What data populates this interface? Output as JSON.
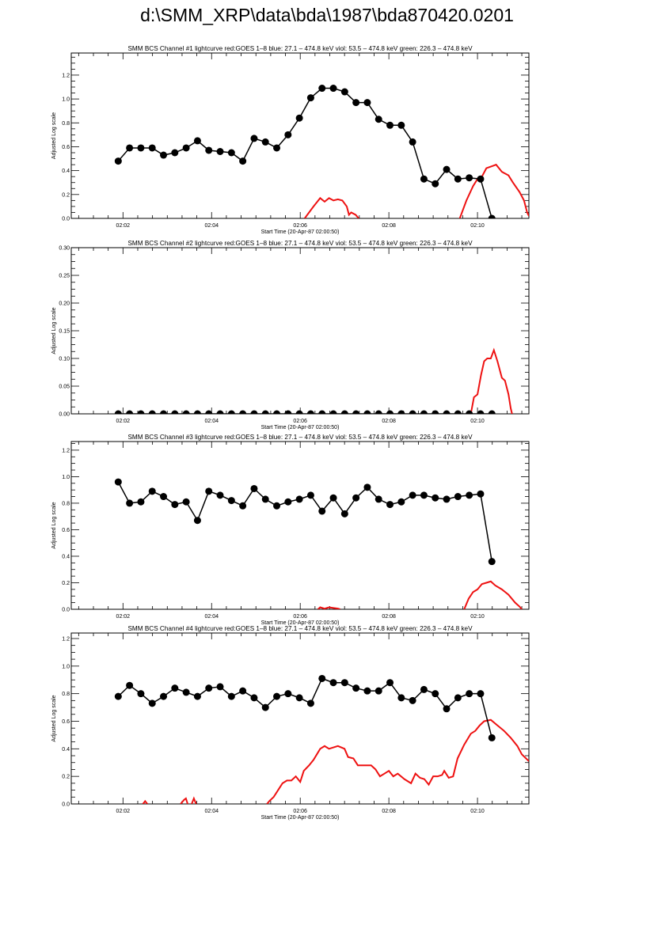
{
  "page_title": "d:\\SMM_XRP\\data\\bda\\1987\\bda870420.0201",
  "colors": {
    "black_series": "#000000",
    "red_series": "#ee1111"
  },
  "chart_data": [
    {
      "type": "line",
      "title": "SMM BCS Channel #1 lightcurve  red:GOES 1–8  blue: 27.1 – 474.8 keV  viol: 53.5 – 474.8 keV  green: 226.3 – 474.8 keV",
      "xlabel": "Start Time (20-Apr-87 02:00:50)",
      "ylabel": "Adjusted Log scale",
      "xlim_minutes_after_0200": [
        0.833,
        11.16
      ],
      "x_ticks": [
        "02:02",
        "02:04",
        "02:06",
        "02:08",
        "02:10"
      ],
      "ylim": [
        0,
        1.385
      ],
      "y_ticks": [
        "0.0",
        "0.2",
        "0.4",
        "0.6",
        "0.8",
        "1.0",
        "1.2"
      ],
      "black_x_start_minutes": 1.893,
      "black_x_step_minutes": 0.2555,
      "black_values": [
        0.48,
        0.59,
        0.59,
        0.59,
        0.53,
        0.55,
        0.59,
        0.65,
        0.57,
        0.56,
        0.55,
        0.48,
        0.67,
        0.64,
        0.59,
        0.7,
        0.84,
        1.01,
        1.09,
        1.09,
        1.06,
        0.97,
        0.97,
        0.83,
        0.78,
        0.78,
        0.64,
        0.33,
        0.29,
        0.41,
        0.33,
        0.34,
        0.33,
        0.0
      ],
      "red_segments": [
        [
          [
            6.1,
            0
          ],
          [
            6.3,
            0.1
          ],
          [
            6.45,
            0.17
          ],
          [
            6.55,
            0.14
          ],
          [
            6.65,
            0.17
          ],
          [
            6.75,
            0.15
          ],
          [
            6.85,
            0.16
          ],
          [
            6.95,
            0.15
          ],
          [
            7.05,
            0.1
          ],
          [
            7.1,
            0.03
          ],
          [
            7.15,
            0.05
          ],
          [
            7.25,
            0.03
          ],
          [
            7.32,
            0
          ]
        ],
        [
          [
            9.6,
            0
          ],
          [
            9.75,
            0.15
          ],
          [
            9.9,
            0.27
          ],
          [
            10.0,
            0.33
          ],
          [
            10.1,
            0.35
          ],
          [
            10.2,
            0.42
          ],
          [
            10.35,
            0.44
          ],
          [
            10.42,
            0.45
          ],
          [
            10.55,
            0.39
          ],
          [
            10.7,
            0.36
          ],
          [
            10.8,
            0.3
          ],
          [
            10.95,
            0.22
          ],
          [
            11.05,
            0.15
          ],
          [
            11.12,
            0.05
          ],
          [
            11.16,
            0.02
          ]
        ]
      ]
    },
    {
      "type": "line",
      "title": "SMM BCS Channel #2 lightcurve  red:GOES 1–8  blue: 27.1 – 474.8 keV  viol: 53.5 – 474.8 keV  green: 226.3 – 474.8 keV",
      "xlabel": "Start Time (20-Apr-87 02:00:50)",
      "ylabel": "Adjusted Log scale",
      "xlim_minutes_after_0200": [
        0.833,
        11.16
      ],
      "x_ticks": [
        "02:02",
        "02:04",
        "02:06",
        "02:08",
        "02:10"
      ],
      "ylim": [
        0,
        0.3
      ],
      "y_ticks": [
        "0.00",
        "0.05",
        "0.10",
        "0.15",
        "0.20",
        "0.25",
        "0.30"
      ],
      "black_x_start_minutes": 1.893,
      "black_x_step_minutes": 0.2555,
      "black_values": [
        0,
        0,
        0,
        0,
        0,
        0,
        0,
        0,
        0,
        0,
        0,
        0,
        0,
        0,
        0,
        0,
        0,
        0,
        0,
        0,
        0,
        0,
        0,
        0,
        0,
        0,
        0,
        0,
        0,
        0,
        0,
        0,
        0,
        0
      ],
      "red_segments": [
        [
          [
            9.85,
            0
          ],
          [
            9.92,
            0.03
          ],
          [
            10.0,
            0.035
          ],
          [
            10.08,
            0.07
          ],
          [
            10.15,
            0.095
          ],
          [
            10.22,
            0.1
          ],
          [
            10.3,
            0.1
          ],
          [
            10.37,
            0.115
          ],
          [
            10.45,
            0.095
          ],
          [
            10.55,
            0.065
          ],
          [
            10.62,
            0.06
          ],
          [
            10.7,
            0.035
          ],
          [
            10.75,
            0.01
          ],
          [
            10.78,
            0
          ]
        ]
      ]
    },
    {
      "type": "line",
      "title": "SMM BCS Channel #3 lightcurve  red:GOES 1–8  blue: 27.1 – 474.8 keV  viol: 53.5 – 474.8 keV  green: 226.3 – 474.8 keV",
      "xlabel": "Start Time (20-Apr-87 02:00:50)",
      "ylabel": "Adjusted Log scale",
      "xlim_minutes_after_0200": [
        0.833,
        11.16
      ],
      "x_ticks": [
        "02:02",
        "02:04",
        "02:06",
        "02:08",
        "02:10"
      ],
      "ylim": [
        0,
        1.265
      ],
      "y_ticks": [
        "0.0",
        "0.2",
        "0.4",
        "0.6",
        "0.8",
        "1.0",
        "1.2"
      ],
      "black_x_start_minutes": 1.893,
      "black_x_step_minutes": 0.2555,
      "black_values": [
        0.96,
        0.8,
        0.81,
        0.89,
        0.85,
        0.79,
        0.81,
        0.67,
        0.89,
        0.86,
        0.82,
        0.78,
        0.91,
        0.83,
        0.78,
        0.81,
        0.83,
        0.86,
        0.74,
        0.84,
        0.72,
        0.84,
        0.92,
        0.83,
        0.79,
        0.81,
        0.86,
        0.86,
        0.84,
        0.83,
        0.85,
        0.86,
        0.87,
        0.36
      ],
      "red_segments": [
        [
          [
            6.4,
            0
          ],
          [
            6.45,
            0.015
          ],
          [
            6.55,
            0.005
          ],
          [
            6.65,
            0.015
          ],
          [
            6.75,
            0.01
          ],
          [
            6.85,
            0.005
          ],
          [
            6.9,
            0
          ]
        ],
        [
          [
            9.7,
            0
          ],
          [
            9.8,
            0.08
          ],
          [
            9.9,
            0.13
          ],
          [
            10.0,
            0.15
          ],
          [
            10.1,
            0.19
          ],
          [
            10.2,
            0.2
          ],
          [
            10.3,
            0.21
          ],
          [
            10.4,
            0.18
          ],
          [
            10.55,
            0.15
          ],
          [
            10.7,
            0.11
          ],
          [
            10.85,
            0.05
          ],
          [
            10.95,
            0.02
          ],
          [
            11.0,
            0
          ]
        ]
      ]
    },
    {
      "type": "line",
      "title": "SMM BCS Channel #4 lightcurve  red:GOES 1–8  blue: 27.1 – 474.8 keV  viol: 53.5 – 474.8 keV  green: 226.3 – 474.8 keV",
      "xlabel": "Start Time (20-Apr-87 02:00:50)",
      "ylabel": "Adjusted Log scale",
      "xlim_minutes_after_0200": [
        0.833,
        11.16
      ],
      "x_ticks": [
        "02:02",
        "02:04",
        "02:06",
        "02:08",
        "02:10"
      ],
      "ylim": [
        0,
        1.24
      ],
      "y_ticks": [
        "0.0",
        "0.2",
        "0.4",
        "0.6",
        "0.8",
        "1.0",
        "1.2"
      ],
      "black_x_start_minutes": 1.893,
      "black_x_step_minutes": 0.2555,
      "black_values": [
        0.78,
        0.86,
        0.8,
        0.73,
        0.78,
        0.84,
        0.81,
        0.78,
        0.84,
        0.85,
        0.78,
        0.82,
        0.77,
        0.7,
        0.78,
        0.8,
        0.77,
        0.73,
        0.91,
        0.88,
        0.88,
        0.84,
        0.82,
        0.82,
        0.88,
        0.77,
        0.75,
        0.83,
        0.8,
        0.69,
        0.77,
        0.8,
        0.8,
        0.48
      ],
      "red_segments": [
        [
          [
            2.45,
            0
          ],
          [
            2.5,
            0.02
          ],
          [
            2.55,
            0
          ]
        ],
        [
          [
            3.3,
            0
          ],
          [
            3.38,
            0.03
          ],
          [
            3.42,
            0.04
          ],
          [
            3.46,
            0
          ]
        ],
        [
          [
            3.55,
            0
          ],
          [
            3.6,
            0.04
          ],
          [
            3.65,
            0
          ]
        ],
        [
          [
            5.25,
            0
          ],
          [
            5.3,
            0.02
          ],
          [
            5.4,
            0.05
          ],
          [
            5.5,
            0.1
          ],
          [
            5.6,
            0.15
          ],
          [
            5.7,
            0.17
          ],
          [
            5.8,
            0.17
          ],
          [
            5.9,
            0.2
          ],
          [
            6.0,
            0.16
          ],
          [
            6.08,
            0.24
          ],
          [
            6.2,
            0.28
          ],
          [
            6.3,
            0.32
          ],
          [
            6.45,
            0.4
          ],
          [
            6.55,
            0.42
          ],
          [
            6.65,
            0.4
          ],
          [
            6.75,
            0.41
          ],
          [
            6.85,
            0.42
          ],
          [
            7.0,
            0.4
          ],
          [
            7.08,
            0.34
          ],
          [
            7.2,
            0.33
          ],
          [
            7.3,
            0.28
          ],
          [
            7.45,
            0.28
          ],
          [
            7.6,
            0.28
          ],
          [
            7.7,
            0.25
          ],
          [
            7.8,
            0.2
          ],
          [
            7.9,
            0.22
          ],
          [
            8.0,
            0.24
          ],
          [
            8.1,
            0.2
          ],
          [
            8.2,
            0.22
          ],
          [
            8.35,
            0.18
          ],
          [
            8.5,
            0.15
          ],
          [
            8.6,
            0.22
          ],
          [
            8.7,
            0.19
          ],
          [
            8.8,
            0.18
          ],
          [
            8.9,
            0.14
          ],
          [
            9.0,
            0.2
          ],
          [
            9.1,
            0.2
          ],
          [
            9.2,
            0.21
          ],
          [
            9.25,
            0.24
          ],
          [
            9.35,
            0.19
          ],
          [
            9.45,
            0.2
          ],
          [
            9.55,
            0.33
          ],
          [
            9.7,
            0.43
          ],
          [
            9.85,
            0.51
          ],
          [
            9.95,
            0.53
          ],
          [
            10.05,
            0.57
          ],
          [
            10.15,
            0.6
          ],
          [
            10.3,
            0.61
          ],
          [
            10.45,
            0.57
          ],
          [
            10.6,
            0.53
          ],
          [
            10.75,
            0.48
          ],
          [
            10.9,
            0.42
          ],
          [
            11.0,
            0.36
          ],
          [
            11.16,
            0.31
          ]
        ]
      ]
    }
  ]
}
